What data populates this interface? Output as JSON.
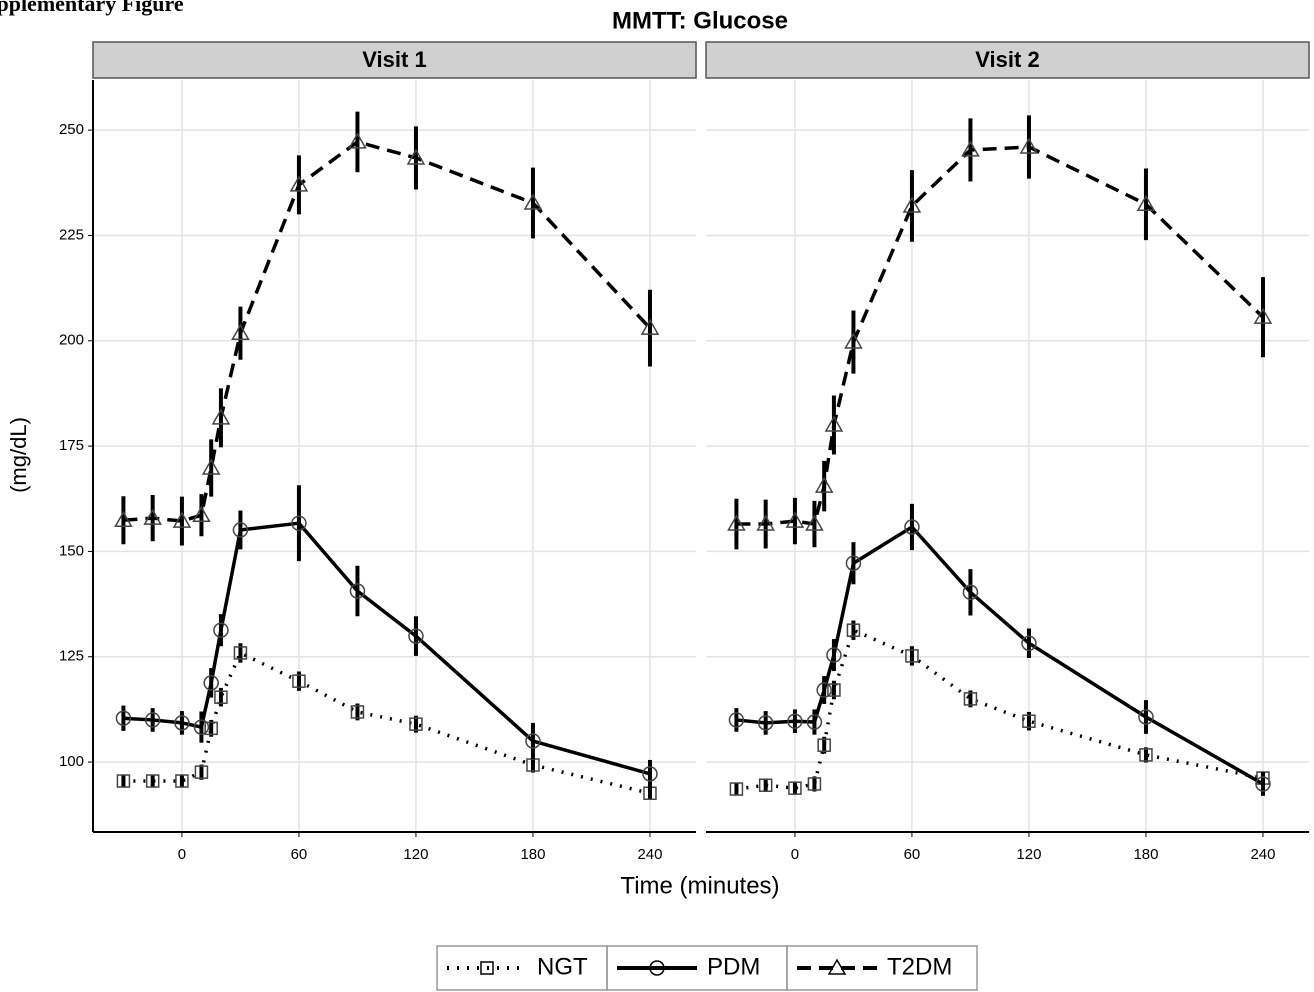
{
  "header": {
    "text": "Supplementary Figure"
  },
  "chart_data": [
    {
      "type": "line",
      "title": "MMTT: Glucose",
      "x_label": "Time (minutes)",
      "y_label": "(mg/dL)",
      "panel": "Visit 1",
      "x": [
        -30,
        -15,
        0,
        10,
        15,
        20,
        30,
        60,
        90,
        120,
        180,
        240
      ],
      "xlim": [
        -45.6,
        263.6
      ],
      "xticks": [
        0,
        60,
        120,
        180,
        240
      ],
      "ylim": [
        83.4,
        261.9
      ],
      "yticks": [
        100,
        125,
        150,
        175,
        200,
        225,
        250
      ],
      "grid": true,
      "series": [
        {
          "name": "NGT",
          "color": "#000000",
          "linestyle": "dotted",
          "marker": "square",
          "values": [
            95.5,
            95.5,
            95.5,
            97.6,
            108,
            115.4,
            125.9,
            119.2,
            111.9,
            109,
            99.3,
            92.6
          ],
          "errors": [
            1.5,
            1.5,
            1.5,
            1.8,
            2,
            2.2,
            2.3,
            2.3,
            2,
            2,
            1.8,
            1.5
          ]
        },
        {
          "name": "PDM",
          "color": "#000000",
          "linestyle": "solid",
          "marker": "circle",
          "values": [
            110.4,
            110,
            109.3,
            108.3,
            118.8,
            131.3,
            155.1,
            156.7,
            140.6,
            129.9,
            105,
            97.2
          ],
          "errors": [
            3,
            2.8,
            2.8,
            3.7,
            3.5,
            3.8,
            4.6,
            9,
            6,
            4.7,
            4.3,
            3.3
          ]
        },
        {
          "name": "T2DM",
          "color": "#000000",
          "linestyle": "dashed",
          "marker": "triangle",
          "values": [
            157.4,
            157.9,
            157.2,
            158.6,
            169.8,
            181.7,
            201.8,
            237,
            247.2,
            243.4,
            232.7,
            203
          ],
          "errors": [
            5.7,
            5.5,
            5.8,
            5,
            6.8,
            7,
            6.3,
            7,
            7.2,
            7.5,
            8.4,
            9.1
          ]
        }
      ]
    },
    {
      "type": "line",
      "panel": "Visit 2",
      "x": [
        -30,
        -15,
        0,
        10,
        15,
        20,
        30,
        60,
        90,
        120,
        180,
        240
      ],
      "xlim": [
        -45.6,
        263.6
      ],
      "xticks": [
        0,
        60,
        120,
        180,
        240
      ],
      "ylim": [
        83.4,
        261.9
      ],
      "yticks": [
        100,
        125,
        150,
        175,
        200,
        225,
        250
      ],
      "grid": true,
      "series": [
        {
          "name": "NGT",
          "color": "#000000",
          "linestyle": "dotted",
          "marker": "square",
          "values": [
            93.6,
            94.5,
            93.8,
            94.8,
            104,
            117.1,
            131.3,
            125.2,
            115,
            109.7,
            101.7,
            96.2
          ],
          "errors": [
            1.5,
            1.5,
            1.5,
            1.8,
            2,
            2.2,
            2.3,
            2.3,
            2,
            2.2,
            1.8,
            1.5
          ]
        },
        {
          "name": "PDM",
          "color": "#000000",
          "linestyle": "solid",
          "marker": "circle",
          "values": [
            110,
            109.3,
            109.7,
            109.5,
            117.1,
            125.4,
            147.2,
            155.8,
            140.3,
            128.2,
            110.7,
            94.8
          ],
          "errors": [
            2.8,
            2.8,
            2.8,
            3,
            3.3,
            3.8,
            5,
            5.5,
            5.5,
            3.5,
            4,
            2.8
          ]
        },
        {
          "name": "T2DM",
          "color": "#000000",
          "linestyle": "dashed",
          "marker": "triangle",
          "values": [
            156.5,
            156.5,
            157.2,
            156.5,
            165.5,
            180,
            199.7,
            232,
            245.3,
            246,
            232.4,
            205.6
          ],
          "errors": [
            6,
            5.8,
            5.5,
            5.5,
            6,
            7,
            7.5,
            8.5,
            7.5,
            7.5,
            8.5,
            9.5
          ]
        }
      ]
    }
  ]
}
